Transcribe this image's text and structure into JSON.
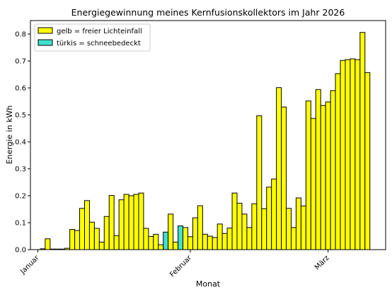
{
  "chart_data": {
    "type": "bar",
    "title": "Energiegewinnung meines Kernfusionskollektors im Jahr 2026",
    "xlabel": "Monat",
    "ylabel": "Energie in kWh",
    "ylim": [
      0,
      0.85
    ],
    "y_ticks": [
      0.0,
      0.1,
      0.2,
      0.3,
      0.4,
      0.5,
      0.6,
      0.7,
      0.8
    ],
    "x_ticks": [
      {
        "label": "Januar",
        "day": 1
      },
      {
        "label": "Februar",
        "day": 32
      },
      {
        "label": "März",
        "day": 60
      }
    ],
    "legend": {
      "position": "top-left",
      "entries": [
        {
          "label": "gelb = freier Lichteinfall",
          "color": "#ffff00"
        },
        {
          "label": "türkis = schneebedeckt",
          "color": "#40e0d0"
        }
      ]
    },
    "colors": {
      "yellow": "#ffff00",
      "turquoise": "#40e0d0",
      "edge": "#000000"
    },
    "days": [
      {
        "x": 1,
        "v": 0.0,
        "c": "y"
      },
      {
        "x": 2,
        "v": 0.003,
        "c": "y"
      },
      {
        "x": 3,
        "v": 0.04,
        "c": "y"
      },
      {
        "x": 4,
        "v": 0.002,
        "c": "y"
      },
      {
        "x": 5,
        "v": 0.002,
        "c": "y"
      },
      {
        "x": 6,
        "v": 0.002,
        "c": "y"
      },
      {
        "x": 7,
        "v": 0.005,
        "c": "y"
      },
      {
        "x": 8,
        "v": 0.075,
        "c": "y"
      },
      {
        "x": 9,
        "v": 0.071,
        "c": "y"
      },
      {
        "x": 10,
        "v": 0.153,
        "c": "y"
      },
      {
        "x": 11,
        "v": 0.182,
        "c": "y"
      },
      {
        "x": 12,
        "v": 0.102,
        "c": "y"
      },
      {
        "x": 13,
        "v": 0.079,
        "c": "y"
      },
      {
        "x": 14,
        "v": 0.028,
        "c": "y"
      },
      {
        "x": 15,
        "v": 0.123,
        "c": "y"
      },
      {
        "x": 16,
        "v": 0.201,
        "c": "y"
      },
      {
        "x": 17,
        "v": 0.052,
        "c": "y"
      },
      {
        "x": 18,
        "v": 0.185,
        "c": "y"
      },
      {
        "x": 19,
        "v": 0.205,
        "c": "y"
      },
      {
        "x": 20,
        "v": 0.2,
        "c": "y"
      },
      {
        "x": 21,
        "v": 0.205,
        "c": "y"
      },
      {
        "x": 22,
        "v": 0.21,
        "c": "y"
      },
      {
        "x": 23,
        "v": 0.079,
        "c": "y"
      },
      {
        "x": 24,
        "v": 0.049,
        "c": "y"
      },
      {
        "x": 25,
        "v": 0.057,
        "c": "y"
      },
      {
        "x": 26,
        "v": 0.018,
        "c": "y"
      },
      {
        "x": 27,
        "v": 0.065,
        "c": "t"
      },
      {
        "x": 28,
        "v": 0.132,
        "c": "y"
      },
      {
        "x": 29,
        "v": 0.028,
        "c": "y"
      },
      {
        "x": 30,
        "v": 0.088,
        "c": "t"
      },
      {
        "x": 31,
        "v": 0.082,
        "c": "y"
      },
      {
        "x": 32,
        "v": 0.048,
        "c": "y"
      },
      {
        "x": 33,
        "v": 0.118,
        "c": "y"
      },
      {
        "x": 34,
        "v": 0.163,
        "c": "y"
      },
      {
        "x": 35,
        "v": 0.057,
        "c": "y"
      },
      {
        "x": 36,
        "v": 0.05,
        "c": "y"
      },
      {
        "x": 37,
        "v": 0.045,
        "c": "y"
      },
      {
        "x": 38,
        "v": 0.095,
        "c": "y"
      },
      {
        "x": 39,
        "v": 0.06,
        "c": "y"
      },
      {
        "x": 40,
        "v": 0.08,
        "c": "y"
      },
      {
        "x": 41,
        "v": 0.21,
        "c": "y"
      },
      {
        "x": 42,
        "v": 0.172,
        "c": "y"
      },
      {
        "x": 43,
        "v": 0.132,
        "c": "y"
      },
      {
        "x": 44,
        "v": 0.082,
        "c": "y"
      },
      {
        "x": 45,
        "v": 0.17,
        "c": "y"
      },
      {
        "x": 46,
        "v": 0.497,
        "c": "y"
      },
      {
        "x": 47,
        "v": 0.152,
        "c": "y"
      },
      {
        "x": 48,
        "v": 0.232,
        "c": "y"
      },
      {
        "x": 49,
        "v": 0.262,
        "c": "y"
      },
      {
        "x": 50,
        "v": 0.601,
        "c": "y"
      },
      {
        "x": 51,
        "v": 0.529,
        "c": "y"
      },
      {
        "x": 52,
        "v": 0.153,
        "c": "y"
      },
      {
        "x": 53,
        "v": 0.082,
        "c": "y"
      },
      {
        "x": 54,
        "v": 0.192,
        "c": "y"
      },
      {
        "x": 55,
        "v": 0.162,
        "c": "y"
      },
      {
        "x": 56,
        "v": 0.552,
        "c": "y"
      },
      {
        "x": 57,
        "v": 0.487,
        "c": "y"
      },
      {
        "x": 58,
        "v": 0.594,
        "c": "y"
      },
      {
        "x": 59,
        "v": 0.535,
        "c": "y"
      },
      {
        "x": 60,
        "v": 0.548,
        "c": "y"
      },
      {
        "x": 61,
        "v": 0.59,
        "c": "y"
      },
      {
        "x": 62,
        "v": 0.653,
        "c": "y"
      },
      {
        "x": 63,
        "v": 0.702,
        "c": "y"
      },
      {
        "x": 64,
        "v": 0.705,
        "c": "y"
      },
      {
        "x": 65,
        "v": 0.708,
        "c": "y"
      },
      {
        "x": 66,
        "v": 0.705,
        "c": "y"
      },
      {
        "x": 67,
        "v": 0.806,
        "c": "y"
      },
      {
        "x": 68,
        "v": 0.657,
        "c": "y"
      }
    ]
  }
}
